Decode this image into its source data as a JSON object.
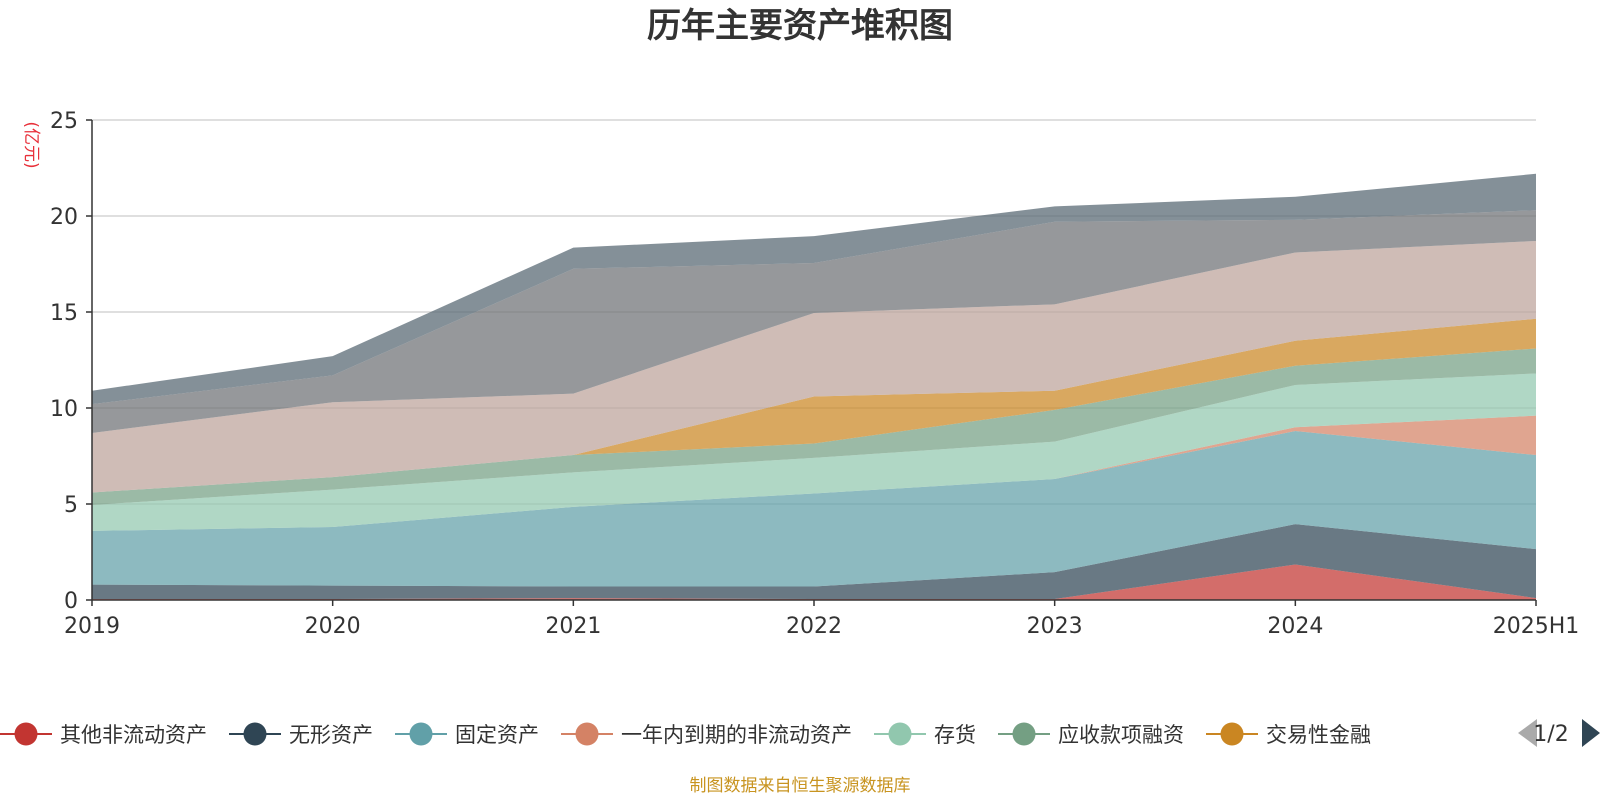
{
  "chart_data": {
    "type": "area",
    "stacked": true,
    "title": "历年主要资产堆积图",
    "unit_label": "(亿元)",
    "x": [
      "2019",
      "2020",
      "2021",
      "2022",
      "2023",
      "2024",
      "2025H1"
    ],
    "ylim": [
      0,
      25
    ],
    "yticks": [
      "0",
      "5",
      "10",
      "15",
      "20",
      "25"
    ],
    "grid": true,
    "legend_position": "bottom",
    "series": [
      {
        "name": "其他非流动资产",
        "color": "#c23531",
        "values": [
          0.05,
          0.05,
          0.1,
          0.05,
          0.05,
          1.85,
          0.1
        ]
      },
      {
        "name": "无形资产",
        "color": "#2f4554",
        "values": [
          0.75,
          0.7,
          0.6,
          0.65,
          1.4,
          2.1,
          2.55
        ]
      },
      {
        "name": "固定资产",
        "color": "#61a0a8",
        "values": [
          2.8,
          3.05,
          4.15,
          4.85,
          4.85,
          4.85,
          4.9
        ]
      },
      {
        "name": "一年内到期的非流动资产",
        "color": "#d48265",
        "values": [
          0.0,
          0.0,
          0.0,
          0.0,
          0.0,
          0.2,
          2.05
        ]
      },
      {
        "name": "存货",
        "color": "#91c7ae",
        "values": [
          1.35,
          1.95,
          1.8,
          1.85,
          1.95,
          2.2,
          2.2
        ]
      },
      {
        "name": "应收款项融资",
        "color": "#749f83",
        "values": [
          0.65,
          0.65,
          0.9,
          0.75,
          1.65,
          1.0,
          1.3
        ]
      },
      {
        "name": "交易性金融",
        "color": "#ca8622",
        "values": [
          0.0,
          0.0,
          0.0,
          2.45,
          1.0,
          1.3,
          1.55
        ]
      },
      {
        "name": "",
        "color": "#bda29a",
        "values": [
          3.1,
          3.9,
          3.2,
          4.35,
          4.5,
          4.6,
          4.05
        ]
      },
      {
        "name": "",
        "color": "#6e7074",
        "values": [
          1.5,
          1.4,
          6.5,
          2.6,
          4.3,
          1.7,
          1.6
        ]
      },
      {
        "name": "",
        "color": "#546570",
        "values": [
          0.7,
          1.0,
          1.1,
          1.4,
          0.8,
          1.2,
          1.9
        ]
      }
    ]
  },
  "legend": {
    "page_indicator": "1/2"
  },
  "footer": {
    "source": "制图数据来自恒生聚源数据库"
  }
}
